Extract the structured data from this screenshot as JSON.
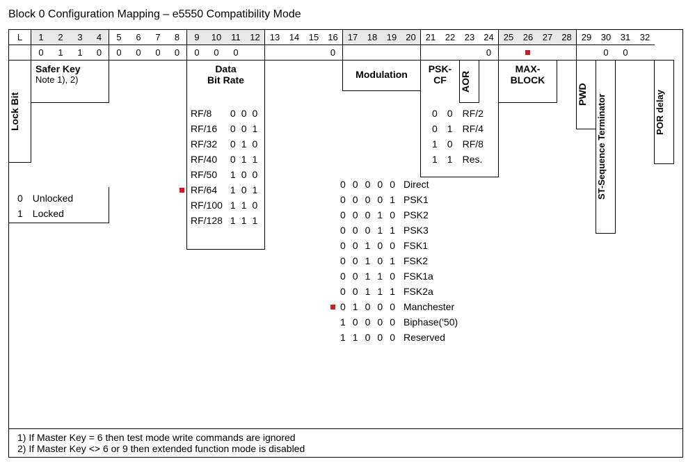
{
  "title": "Block 0 Configuration Mapping – e5550 Compatibility Mode",
  "bit_numbers_row": {
    "L": "L",
    "cells": [
      "1",
      "2",
      "3",
      "4",
      "5",
      "6",
      "7",
      "8",
      "9",
      "10",
      "11",
      "12",
      "13",
      "14",
      "15",
      "16",
      "17",
      "18",
      "19",
      "20",
      "21",
      "22",
      "23",
      "24",
      "25",
      "26",
      "27",
      "28",
      "29",
      "30",
      "31",
      "32"
    ],
    "shaded_ranges": [
      [
        0,
        3
      ],
      [
        8,
        11
      ],
      [
        16,
        19
      ],
      [
        24,
        27
      ]
    ]
  },
  "value_row": {
    "L_blank": "",
    "values": [
      "0",
      "1",
      "1",
      "0",
      "0",
      "0",
      "0",
      "0",
      "0",
      "0",
      "0",
      "",
      "",
      "",
      "",
      "0",
      "",
      "",
      "",
      "",
      "",
      "",
      "",
      "0",
      "",
      "",
      "",
      "",
      "",
      "0",
      "0",
      ""
    ],
    "has_marker_at": 25
  },
  "groups": {
    "lockbit": {
      "label": "Lock Bit"
    },
    "saferkey": {
      "label": "Safer Key",
      "sub": "Note 1),  2)"
    },
    "bitrate": {
      "label": "Data\nBit Rate"
    },
    "modulation": {
      "label": "Modulation"
    },
    "pskcf": {
      "label": "PSK-\nCF"
    },
    "aor": {
      "label": "AOR"
    },
    "maxblock": {
      "label": "MAX-\nBLOCK"
    },
    "pwd": {
      "label": "PWD"
    },
    "stseq": {
      "label": "ST-Sequence Terminator"
    },
    "pordelay": {
      "label": "POR delay"
    }
  },
  "lockbit_values": [
    {
      "v": "0",
      "t": "Unlocked"
    },
    {
      "v": "1",
      "t": "Locked"
    }
  ],
  "bitrate_table": [
    {
      "name": "RF/8",
      "bits": [
        "0",
        "0",
        "0"
      ],
      "marked": false
    },
    {
      "name": "RF/16",
      "bits": [
        "0",
        "0",
        "1"
      ],
      "marked": false
    },
    {
      "name": "RF/32",
      "bits": [
        "0",
        "1",
        "0"
      ],
      "marked": false
    },
    {
      "name": "RF/40",
      "bits": [
        "0",
        "1",
        "1"
      ],
      "marked": false
    },
    {
      "name": "RF/50",
      "bits": [
        "1",
        "0",
        "0"
      ],
      "marked": false
    },
    {
      "name": "RF/64",
      "bits": [
        "1",
        "0",
        "1"
      ],
      "marked": true
    },
    {
      "name": "RF/100",
      "bits": [
        "1",
        "1",
        "0"
      ],
      "marked": false
    },
    {
      "name": "RF/128",
      "bits": [
        "1",
        "1",
        "1"
      ],
      "marked": false
    }
  ],
  "pskcf_table": [
    {
      "bits": [
        "0",
        "0"
      ],
      "name": "RF/2"
    },
    {
      "bits": [
        "0",
        "1"
      ],
      "name": "RF/4"
    },
    {
      "bits": [
        "1",
        "0"
      ],
      "name": "RF/8"
    },
    {
      "bits": [
        "1",
        "1"
      ],
      "name": "Res."
    }
  ],
  "modulation_table": [
    {
      "bits": [
        "0",
        "0",
        "0",
        "0",
        "0"
      ],
      "name": "Direct",
      "marked": false
    },
    {
      "bits": [
        "0",
        "0",
        "0",
        "0",
        "1"
      ],
      "name": "PSK1",
      "marked": false
    },
    {
      "bits": [
        "0",
        "0",
        "0",
        "1",
        "0"
      ],
      "name": "PSK2",
      "marked": false
    },
    {
      "bits": [
        "0",
        "0",
        "0",
        "1",
        "1"
      ],
      "name": "PSK3",
      "marked": false
    },
    {
      "bits": [
        "0",
        "0",
        "1",
        "0",
        "0"
      ],
      "name": "FSK1",
      "marked": false
    },
    {
      "bits": [
        "0",
        "0",
        "1",
        "0",
        "1"
      ],
      "name": "FSK2",
      "marked": false
    },
    {
      "bits": [
        "0",
        "0",
        "1",
        "1",
        "0"
      ],
      "name": "FSK1a",
      "marked": false
    },
    {
      "bits": [
        "0",
        "0",
        "1",
        "1",
        "1"
      ],
      "name": "FSK2a",
      "marked": false
    },
    {
      "bits": [
        "0",
        "1",
        "0",
        "0",
        "0"
      ],
      "name": "Manchester",
      "marked": true
    },
    {
      "bits": [
        "1",
        "0",
        "0",
        "0",
        "0"
      ],
      "name": "Biphase('50)",
      "marked": false
    },
    {
      "bits": [
        "1",
        "1",
        "0",
        "0",
        "0"
      ],
      "name": "Reserved",
      "marked": false
    }
  ],
  "notes": [
    "1)  If Master Key = 6 then test mode write commands are ignored",
    "2)  If Master Key <> 6 or 9 then extended function mode is disabled"
  ],
  "colors": {
    "marker": "#d8181f",
    "text": "#000",
    "shade": "#e8e8e8",
    "bg": "#fff"
  }
}
